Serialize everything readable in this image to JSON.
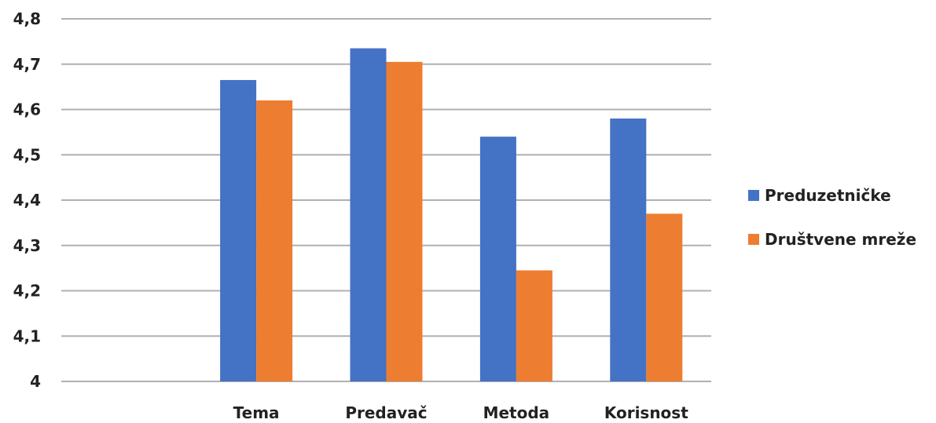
{
  "chart_data": {
    "type": "bar",
    "categories": [
      "",
      "Tema",
      "Predavač",
      "Metoda",
      "Korisnost"
    ],
    "series": [
      {
        "name": "Preduzetničke",
        "color": "#4472C4",
        "values": [
          null,
          4.665,
          4.735,
          4.54,
          4.58
        ]
      },
      {
        "name": "Društvene mreže",
        "color": "#ED7D31",
        "values": [
          null,
          4.62,
          4.705,
          4.245,
          4.37
        ]
      }
    ],
    "ylim": [
      4,
      4.8
    ],
    "yticks": [
      "4",
      "4,1",
      "4,2",
      "4,3",
      "4,4",
      "4,5",
      "4,6",
      "4,7",
      "4,8"
    ],
    "grid": true,
    "legend_position": "right",
    "title": "",
    "xlabel": "",
    "ylabel": ""
  }
}
